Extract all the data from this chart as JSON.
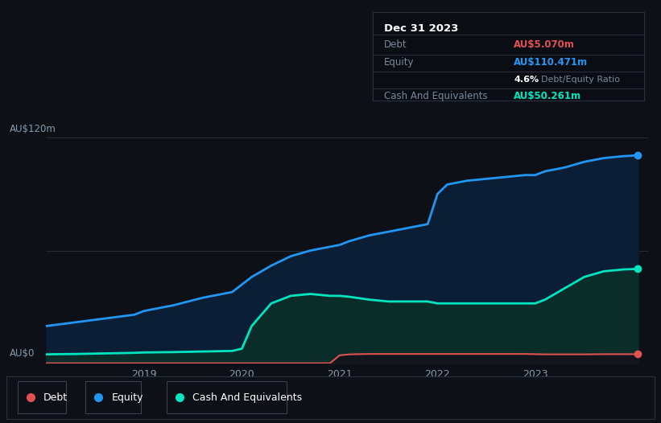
{
  "background_color": "#0d1117",
  "plot_bg_color": "#0d1117",
  "grid_color": "#252e3d",
  "title_date": "Dec 31 2023",
  "tooltip": {
    "debt_label": "Debt",
    "debt_value": "AU$5.070m",
    "equity_label": "Equity",
    "equity_value": "AU$110.471m",
    "ratio_value": "4.6%",
    "ratio_label": "Debt/Equity Ratio",
    "cash_label": "Cash And Equivalents",
    "cash_value": "AU$50.261m"
  },
  "ylabel": "AU$120m",
  "y0label": "AU$0",
  "debt_color": "#e05252",
  "equity_color": "#2196f3",
  "cash_color": "#00e5c0",
  "x": [
    2018.0,
    2018.3,
    2018.6,
    2018.9,
    2019.0,
    2019.3,
    2019.6,
    2019.9,
    2020.0,
    2020.1,
    2020.3,
    2020.5,
    2020.7,
    2020.9,
    2021.0,
    2021.1,
    2021.3,
    2021.5,
    2021.7,
    2021.9,
    2022.0,
    2022.1,
    2022.3,
    2022.5,
    2022.7,
    2022.9,
    2023.0,
    2023.1,
    2023.3,
    2023.5,
    2023.7,
    2023.9,
    2024.05
  ],
  "equity": [
    20,
    22,
    24,
    26,
    28,
    31,
    35,
    38,
    42,
    46,
    52,
    57,
    60,
    62,
    63,
    65,
    68,
    70,
    72,
    74,
    90,
    95,
    97,
    98,
    99,
    100,
    100,
    102,
    104,
    107,
    109,
    110,
    110.471
  ],
  "cash": [
    5,
    5.2,
    5.5,
    5.8,
    6,
    6.2,
    6.5,
    6.8,
    8,
    20,
    32,
    36,
    37,
    36,
    36,
    35.5,
    34,
    33,
    33,
    33,
    32,
    32,
    32,
    32,
    32,
    32,
    32,
    34,
    40,
    46,
    49,
    50,
    50.261
  ],
  "debt": [
    0.3,
    0.3,
    0.3,
    0.3,
    0.3,
    0.3,
    0.3,
    0.3,
    0.3,
    0.3,
    0.3,
    0.3,
    0.3,
    0.3,
    4.5,
    5.0,
    5.2,
    5.2,
    5.2,
    5.2,
    5.2,
    5.2,
    5.2,
    5.2,
    5.2,
    5.2,
    5.1,
    5.0,
    5.0,
    5.0,
    5.1,
    5.1,
    5.07
  ],
  "xlim": [
    2018.0,
    2024.15
  ],
  "ylim": [
    0,
    130
  ],
  "xtick_labels": [
    "2019",
    "2020",
    "2021",
    "2022",
    "2023"
  ],
  "xtick_positions": [
    2019,
    2020,
    2021,
    2022,
    2023
  ],
  "legend_labels": [
    "Debt",
    "Equity",
    "Cash And Equivalents"
  ],
  "legend_colors": [
    "#e05252",
    "#2196f3",
    "#00e5c0"
  ]
}
